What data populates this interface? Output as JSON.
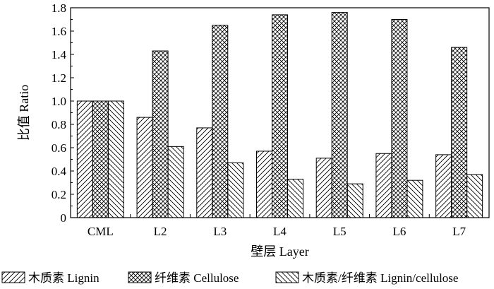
{
  "chart_data": {
    "type": "bar",
    "categories": [
      "CML",
      "L2",
      "L3",
      "L4",
      "L5",
      "L6",
      "L7"
    ],
    "series": [
      {
        "name": "木质素 Lignin",
        "values": [
          1.0,
          0.86,
          0.77,
          0.57,
          0.51,
          0.55,
          0.54
        ],
        "pattern": "diag-right"
      },
      {
        "name": "纤维素 Cellulose",
        "values": [
          1.0,
          1.43,
          1.65,
          1.74,
          1.76,
          1.7,
          1.46
        ],
        "pattern": "crosshatch"
      },
      {
        "name": "木质素/纤维素 Lignin/cellulose",
        "values": [
          1.0,
          0.61,
          0.47,
          0.33,
          0.29,
          0.32,
          0.37
        ],
        "pattern": "diag-left"
      }
    ],
    "xlabel": "壁层 Layer",
    "ylabel": "比值 Ratio",
    "ylim": [
      0,
      1.8
    ],
    "yticks": [
      0,
      0.2,
      0.4,
      0.6,
      0.8,
      1.0,
      1.2,
      1.4,
      1.6,
      1.8
    ],
    "ytick_labels": [
      "0",
      "0.2",
      "0.4",
      "0.6",
      "0.8",
      "1.0",
      "1.2",
      "1.4",
      "1.6",
      "1.8"
    ],
    "grid": false,
    "legend_position": "bottom",
    "colors": {
      "bar_fill": "#ffffff",
      "stroke": "#000000"
    }
  }
}
